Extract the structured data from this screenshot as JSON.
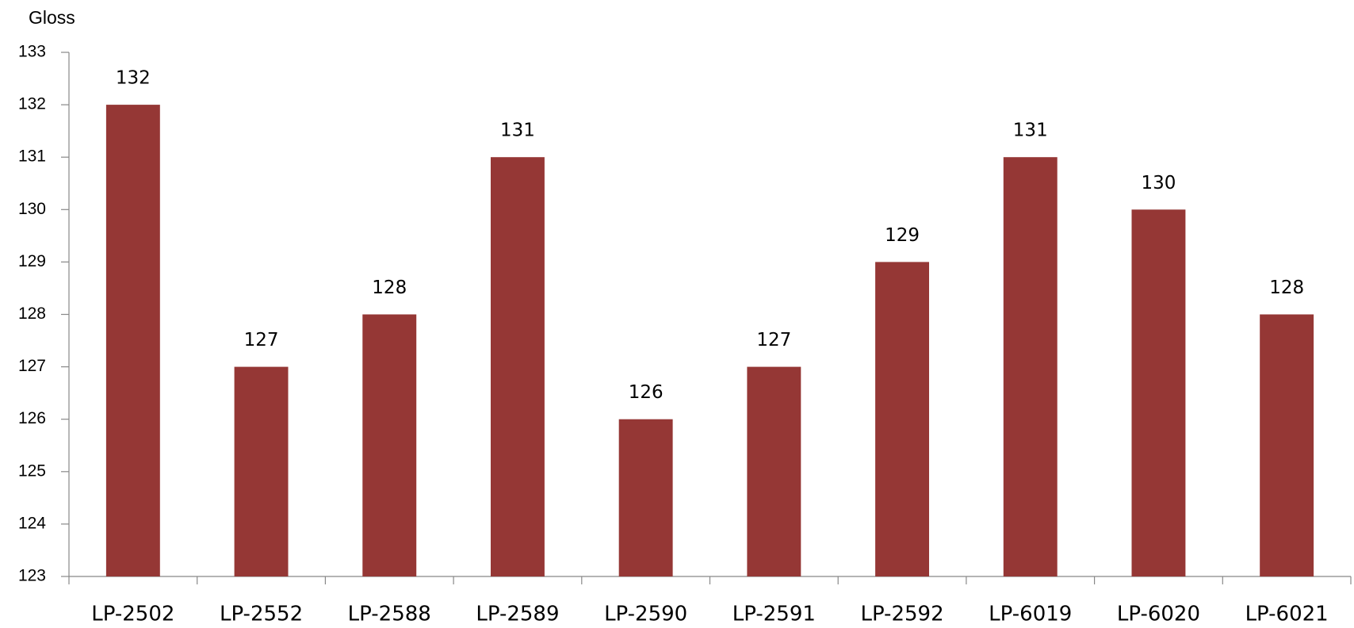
{
  "chart_data": {
    "type": "bar",
    "y_label": "Gloss",
    "categories": [
      "LP-2502",
      "LP-2552",
      "LP-2588",
      "LP-2589",
      "LP-2590",
      "LP-2591",
      "LP-2592",
      "LP-6019",
      "LP-6020",
      "LP-6021"
    ],
    "values": [
      132,
      127,
      128,
      131,
      126,
      127,
      129,
      131,
      130,
      128
    ],
    "color": "#953735",
    "ylim": [
      123,
      133
    ],
    "yticks": [
      123,
      124,
      125,
      126,
      127,
      128,
      129,
      130,
      131,
      132,
      133
    ],
    "grid": false,
    "data_labels": true
  }
}
